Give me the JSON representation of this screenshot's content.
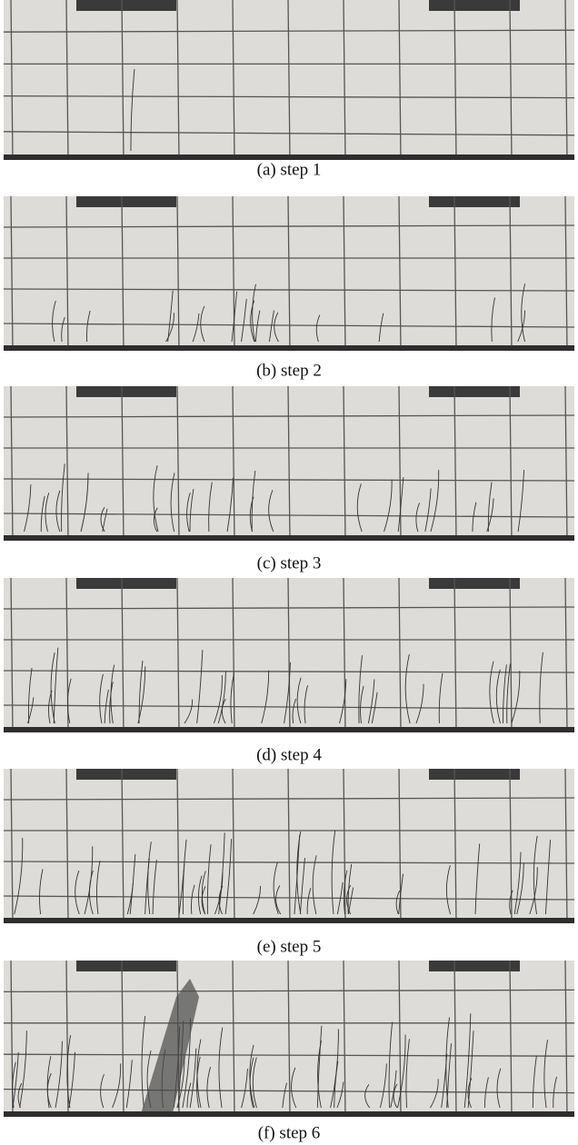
{
  "panels": [
    {
      "caption": "(a) step 1"
    },
    {
      "caption": "(b) step 2"
    },
    {
      "caption": "(c) step 3"
    },
    {
      "caption": "(d) step 4"
    },
    {
      "caption": "(e) step 5"
    },
    {
      "caption": "(f) step 6"
    }
  ]
}
